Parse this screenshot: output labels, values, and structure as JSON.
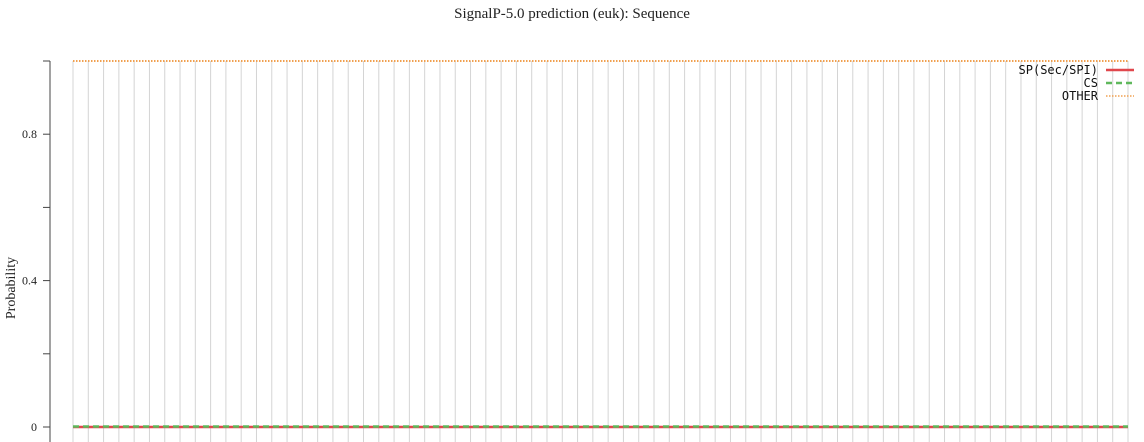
{
  "chart_data": {
    "type": "line",
    "title": "SignalP-5.0 prediction (euk):  Sequence",
    "xlabel": "",
    "ylabel": "Probability",
    "ylim": [
      0,
      1
    ],
    "xlim": [
      1,
      70
    ],
    "yticks": [
      {
        "value": 0,
        "label": "0"
      },
      {
        "value": 0.2,
        "label": ""
      },
      {
        "value": 0.4,
        "label": "0.4"
      },
      {
        "value": 0.6,
        "label": ""
      },
      {
        "value": 0.8,
        "label": "0.8"
      },
      {
        "value": 1.0,
        "label": ""
      }
    ],
    "grid": "vertical",
    "legend_position": "top-right",
    "series": [
      {
        "name": "SP(Sec/SPI)",
        "color": "#e0474c",
        "style": "solid",
        "value": 0
      },
      {
        "name": "CS",
        "color": "#5fb85c",
        "style": "dashed",
        "value": 0
      },
      {
        "name": "OTHER",
        "color": "#f0a050",
        "style": "dotted",
        "value": 1
      }
    ]
  }
}
